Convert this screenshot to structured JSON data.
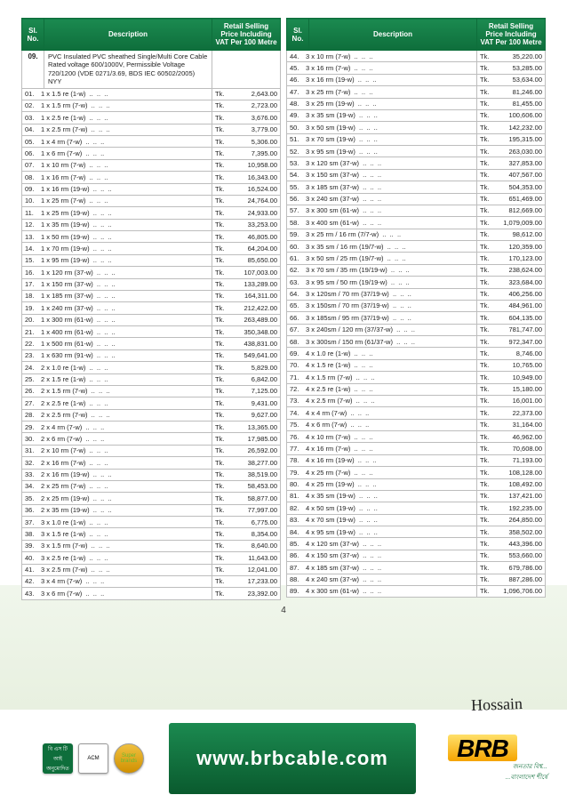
{
  "header": {
    "sl": "Sl.\nNo.",
    "desc": "Description",
    "price": "Retail Selling Price\nIncluding VAT\nPer 100 Metre"
  },
  "left": {
    "catNo": "09.",
    "catDesc": "PVC Insulated PVC sheathed Single/Multi Core Cable Rated voltage 600/1000V, Permissible Voltage 720/1200 (VDE 0271/3.69, BDS IEC 60502/2005) NYY",
    "rows": [
      [
        "01.",
        "1 x 1.5  re  (1-w)",
        "2,643.00"
      ],
      [
        "02.",
        "1 x 1.5 rm  (7-w)",
        "2,723.00"
      ],
      [
        "03.",
        "1 x 2.5  re  (1-w)",
        "3,676.00"
      ],
      [
        "04.",
        "1 x 2.5 rm  (7-w)",
        "3,779.00"
      ],
      [
        "05.",
        "1 x 4    rm  (7-w)",
        "5,306.00"
      ],
      [
        "06.",
        "1 x 6    rm  (7-w)",
        "7,395.00"
      ],
      [
        "07.",
        "1 x 10  rm  (7-w)",
        "10,958.00"
      ],
      [
        "08.",
        "1 x 16  rm  (7-w)",
        "16,343.00"
      ],
      [
        "09.",
        "1 x 16  rm  (19-w)",
        "16,524.00"
      ],
      [
        "10.",
        "1 x 25  rm  (7-w)",
        "24,764.00"
      ],
      [
        "11.",
        "1 x 25  rm  (19-w)",
        "24,933.00"
      ],
      [
        "12.",
        "1 x 35  rm  (19-w)",
        "33,253.00"
      ],
      [
        "13.",
        "1 x 50  rm  (19-w)",
        "46,805.00"
      ],
      [
        "14.",
        "1 x 70  rm  (19-w)",
        "64,204.00"
      ],
      [
        "15.",
        "1 x 95  rm  (19-w)",
        "85,650.00"
      ],
      [
        "16.",
        "1 x 120 rm  (37-w)",
        "107,003.00"
      ],
      [
        "17.",
        "1 x 150 rm  (37-w)",
        "133,289.00"
      ],
      [
        "18.",
        "1 x 185 rm  (37-w)",
        "164,311.00"
      ],
      [
        "19.",
        "1 x 240 rm  (37-w)",
        "212,422.00"
      ],
      [
        "20.",
        "1 x 300 rm  (61-w)",
        "263,489.00"
      ],
      [
        "21.",
        "1 x 400 rm  (61-w)",
        "350,348.00"
      ],
      [
        "22.",
        "1 x 500 rm  (61-w)",
        "438,831.00"
      ],
      [
        "23.",
        "1 x 630 rm  (91-w)",
        "549,641.00"
      ],
      [
        "24.",
        "2 x 1.0  re  (1-w)",
        "5,829.00"
      ],
      [
        "25.",
        "2 x 1.5  re  (1-w)",
        "6,842.00"
      ],
      [
        "26.",
        "2 x 1.5  rm  (7-w)",
        "7,125.00"
      ],
      [
        "27.",
        "2 x 2.5  re  (1-w)",
        "9,431.00"
      ],
      [
        "28.",
        "2 x 2.5  rm  (7-w)",
        "9,627.00"
      ],
      [
        "29.",
        "2 x 4    rm  (7-w)",
        "13,365.00"
      ],
      [
        "30.",
        "2 x 6    rm  (7-w)",
        "17,985.00"
      ],
      [
        "31.",
        "2 x 10  rm  (7-w)",
        "26,592.00"
      ],
      [
        "32.",
        "2 x 16  rm  (7-w)",
        "38,277.00"
      ],
      [
        "33.",
        "2 x 16  rm  (19-w)",
        "38,519.00"
      ],
      [
        "34.",
        "2 x 25  rm  (7-w)",
        "58,453.00"
      ],
      [
        "35.",
        "2 x 25  rm  (19-w)",
        "58,877.00"
      ],
      [
        "36.",
        "2 x 35  rm  (19-w)",
        "77,997.00"
      ],
      [
        "37.",
        "3 x 1.0  re  (1-w)",
        "6,775.00"
      ],
      [
        "38.",
        "3 x 1.5  re  (1-w)",
        "8,354.00"
      ],
      [
        "39.",
        "3 x 1.5  rm  (7-w)",
        "8,640.00"
      ],
      [
        "40.",
        "3 x 2.5  re  (1-w)",
        "11,643.00"
      ],
      [
        "41.",
        "3 x 2.5  rm  (7-w)",
        "12,041.00"
      ],
      [
        "42.",
        "3 x 4    rm  (7-w)",
        "17,233.00"
      ],
      [
        "43.",
        "3 x 6    rm  (7-w)",
        "23,392.00"
      ]
    ]
  },
  "right": {
    "rows": [
      [
        "44.",
        "3 x 10  rm  (7-w)",
        "35,220.00"
      ],
      [
        "45.",
        "3 x 16  rm  (7-w)",
        "53,285.00"
      ],
      [
        "46.",
        "3 x 16  rm  (19-w)",
        "53,634.00"
      ],
      [
        "47.",
        "3 x 25  rm  (7-w)",
        "81,246.00"
      ],
      [
        "48.",
        "3 x 25  rm  (19-w)",
        "81,455.00"
      ],
      [
        "49.",
        "3 x 35  sm  (19-w)",
        "100,606.00"
      ],
      [
        "50.",
        "3 x 50  sm  (19-w)",
        "142,232.00"
      ],
      [
        "51.",
        "3 x 70  sm  (19-w)",
        "195,315.00"
      ],
      [
        "52.",
        "3 x 95  sm  (19-w)",
        "263,030.00"
      ],
      [
        "53.",
        "3 x 120 sm  (37-w)",
        "327,853.00"
      ],
      [
        "54.",
        "3 x 150 sm  (37-w)",
        "407,567.00"
      ],
      [
        "55.",
        "3 x 185 sm  (37-w)",
        "504,353.00"
      ],
      [
        "56.",
        "3 x 240 sm  (37-w)",
        "651,469.00"
      ],
      [
        "57.",
        "3 x 300 sm  (61-w)",
        "812,669.00"
      ],
      [
        "58.",
        "3 x 400 sm  (61-w)",
        "1,079,009.00"
      ],
      [
        "59.",
        "3 x 25 rm / 16 rm (7/7-w)",
        "98,612.00"
      ],
      [
        "60.",
        "3 x 35 sm / 16 rm (19/7-w)",
        "120,359.00"
      ],
      [
        "61.",
        "3 x 50 sm / 25 rm (19/7-w)",
        "170,123.00"
      ],
      [
        "62.",
        "3 x 70 sm / 35 rm (19/19-w)",
        "238,624.00"
      ],
      [
        "63.",
        "3 x 95 sm / 50 rm (19/19-w)",
        "323,684.00"
      ],
      [
        "64.",
        "3 x 120sm / 70 rm (37/19-w)",
        "406,256.00"
      ],
      [
        "65.",
        "3 x 150sm / 70 rm (37/19-w)",
        "484,961.00"
      ],
      [
        "66.",
        "3 x 185sm / 95 rm (37/19-w)",
        "604,135.00"
      ],
      [
        "67.",
        "3 x 240sm / 120 rm (37/37-w)",
        "781,747.00"
      ],
      [
        "68.",
        "3 x 300sm / 150 rm (61/37-w)",
        "972,347.00"
      ],
      [
        "69.",
        "4 x 1.0 re (1-w)",
        "8,746.00"
      ],
      [
        "70.",
        "4 x 1.5  re  (1-w)",
        "10,765.00"
      ],
      [
        "71.",
        "4 x 1.5  rm  (7-w)",
        "10,949.00"
      ],
      [
        "72.",
        "4 x 2.5  re  (1-w)",
        "15,180.00"
      ],
      [
        "73.",
        "4 x 2.5  rm  (7-w)",
        "16,001.00"
      ],
      [
        "74.",
        "4 x 4    rm  (7-w)",
        "22,373.00"
      ],
      [
        "75.",
        "4 x 6    rm  (7-w)",
        "31,164.00"
      ],
      [
        "76.",
        "4 x 10  rm  (7-w)",
        "46,962.00"
      ],
      [
        "77.",
        "4 x 16  rm  (7-w)",
        "70,608.00"
      ],
      [
        "78.",
        "4 x 16  rm  (19-w)",
        "71,193.00"
      ],
      [
        "79.",
        "4 x 25  rm  (7-w)",
        "108,128.00"
      ],
      [
        "80.",
        "4 x 25  rm  (19-w)",
        "108,492.00"
      ],
      [
        "81.",
        "4 x 35  sm  (19-w)",
        "137,421.00"
      ],
      [
        "82.",
        "4 x 50  sm  (19-w)",
        "192,235.00"
      ],
      [
        "83.",
        "4 x 70  sm  (19-w)",
        "264,850.00"
      ],
      [
        "84.",
        "4 x 95  sm  (19-w)",
        "358,502.00"
      ],
      [
        "85.",
        "4 x 120 sm  (37-w)",
        "443,396.00"
      ],
      [
        "86.",
        "4 x 150 sm  (37-w)",
        "553,660.00"
      ],
      [
        "87.",
        "4 x 185 sm  (37-w)",
        "679,786.00"
      ],
      [
        "88.",
        "4 x 240 sm  (37-w)",
        "887,286.00"
      ],
      [
        "89.",
        "4 x 300 sm  (61-w)",
        "1,096,706.00"
      ]
    ]
  },
  "pageNum": "4",
  "currency": "Tk.",
  "footer": {
    "url": "www.brbcable.com",
    "brand": "BRB",
    "tagline1": "জনতার বিশ্ব...",
    "tagline2": "...বাংলাদেশ শীর্ষে"
  }
}
